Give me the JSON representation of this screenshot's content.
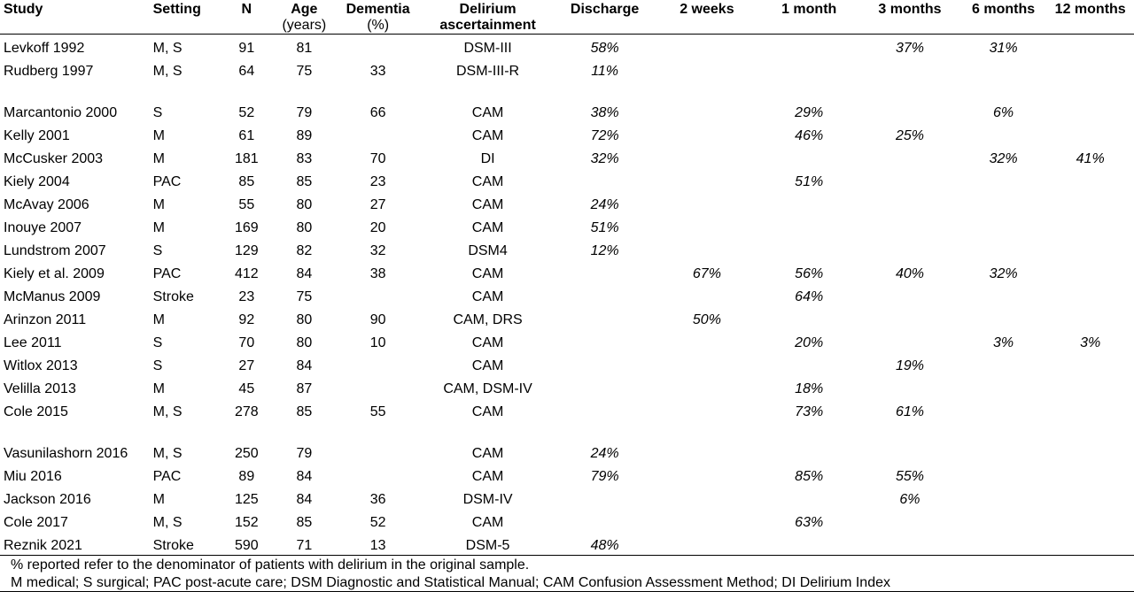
{
  "headers": {
    "study": "Study",
    "setting": "Setting",
    "n": "N",
    "age": "Age",
    "age_unit": "(years)",
    "dementia": "Dementia",
    "dementia_unit": "(%)",
    "delirium_line1": "Delirium",
    "delirium_line2": "ascertainment",
    "discharge": "Discharge",
    "w2": "2 weeks",
    "m1": "1 month",
    "m3": "3 months",
    "m6": "6 months",
    "m12": "12 months"
  },
  "rows": [
    {
      "study": "Levkoff 1992",
      "setting": "M, S",
      "n": "91",
      "age": "81",
      "dementia": "",
      "delirium": "DSM-III",
      "discharge": "58%",
      "w2": "",
      "m1": "",
      "m3": "37%",
      "m6": "31%",
      "m12": ""
    },
    {
      "study": "Rudberg 1997",
      "setting": "M, S",
      "n": "64",
      "age": "75",
      "dementia": "33",
      "delirium": "DSM-III-R",
      "discharge": "11%",
      "w2": "",
      "m1": "",
      "m3": "",
      "m6": "",
      "m12": ""
    },
    {
      "study": "Marcantonio 2000",
      "setting": "S",
      "n": "52",
      "age": "79",
      "dementia": "66",
      "delirium": "CAM",
      "discharge": "38%",
      "w2": "",
      "m1": "29%",
      "m3": "",
      "m6": "6%",
      "m12": ""
    },
    {
      "study": "Kelly 2001",
      "setting": "M",
      "n": "61",
      "age": "89",
      "dementia": "",
      "delirium": "CAM",
      "discharge": "72%",
      "w2": "",
      "m1": "46%",
      "m3": "25%",
      "m6": "",
      "m12": ""
    },
    {
      "study": "McCusker 2003",
      "setting": "M",
      "n": "181",
      "age": "83",
      "dementia": "70",
      "delirium": "DI",
      "discharge": "32%",
      "w2": "",
      "m1": "",
      "m3": "",
      "m6": "32%",
      "m12": "41%"
    },
    {
      "study": "Kiely 2004",
      "setting": "PAC",
      "n": "85",
      "age": "85",
      "dementia": "23",
      "delirium": "CAM",
      "discharge": "",
      "w2": "",
      "m1": "51%",
      "m3": "",
      "m6": "",
      "m12": ""
    },
    {
      "study": "McAvay 2006",
      "setting": "M",
      "n": "55",
      "age": "80",
      "dementia": "27",
      "delirium": "CAM",
      "discharge": "24%",
      "w2": "",
      "m1": "",
      "m3": "",
      "m6": "",
      "m12": ""
    },
    {
      "study": "Inouye 2007",
      "setting": "M",
      "n": "169",
      "age": "80",
      "dementia": "20",
      "delirium": "CAM",
      "discharge": "51%",
      "w2": "",
      "m1": "",
      "m3": "",
      "m6": "",
      "m12": ""
    },
    {
      "study": "Lundstrom 2007",
      "setting": "S",
      "n": "129",
      "age": "82",
      "dementia": "32",
      "delirium": "DSM4",
      "discharge": "12%",
      "w2": "",
      "m1": "",
      "m3": "",
      "m6": "",
      "m12": ""
    },
    {
      "study": "Kiely et al. 2009",
      "setting": "PAC",
      "n": "412",
      "age": "84",
      "dementia": "38",
      "delirium": "CAM",
      "discharge": "",
      "w2": "67%",
      "m1": "56%",
      "m3": "40%",
      "m6": "32%",
      "m12": ""
    },
    {
      "study": "McManus 2009",
      "setting": "Stroke",
      "n": "23",
      "age": "75",
      "dementia": "",
      "delirium": "CAM",
      "discharge": "",
      "w2": "",
      "m1": "64%",
      "m3": "",
      "m6": "",
      "m12": ""
    },
    {
      "study": "Arinzon 2011",
      "setting": "M",
      "n": "92",
      "age": "80",
      "dementia": "90",
      "delirium": "CAM, DRS",
      "discharge": "",
      "w2": "50%",
      "m1": "",
      "m3": "",
      "m6": "",
      "m12": ""
    },
    {
      "study": "Lee 2011",
      "setting": "S",
      "n": "70",
      "age": "80",
      "dementia": "10",
      "delirium": "CAM",
      "discharge": "",
      "w2": "",
      "m1": "20%",
      "m3": "",
      "m6": "3%",
      "m12": "3%"
    },
    {
      "study": "Witlox 2013",
      "setting": "S",
      "n": "27",
      "age": "84",
      "dementia": "",
      "delirium": "CAM",
      "discharge": "",
      "w2": "",
      "m1": "",
      "m3": "19%",
      "m6": "",
      "m12": ""
    },
    {
      "study": "Velilla 2013",
      "setting": "M",
      "n": "45",
      "age": "87",
      "dementia": "",
      "delirium": "CAM, DSM-IV",
      "discharge": "",
      "w2": "",
      "m1": "18%",
      "m3": "",
      "m6": "",
      "m12": ""
    },
    {
      "study": "Cole 2015",
      "setting": "M, S",
      "n": "278",
      "age": "85",
      "dementia": "55",
      "delirium": "CAM",
      "discharge": "",
      "w2": "",
      "m1": "73%",
      "m3": "61%",
      "m6": "",
      "m12": ""
    },
    {
      "study": "Vasunilashorn 2016",
      "setting": "M, S",
      "n": "250",
      "age": "79",
      "dementia": "",
      "delirium": "CAM",
      "discharge": "24%",
      "w2": "",
      "m1": "",
      "m3": "",
      "m6": "",
      "m12": ""
    },
    {
      "study": "Miu 2016",
      "setting": "PAC",
      "n": "89",
      "age": "84",
      "dementia": "",
      "delirium": "CAM",
      "discharge": "79%",
      "w2": "",
      "m1": "85%",
      "m3": "55%",
      "m6": "",
      "m12": ""
    },
    {
      "study": "Jackson 2016",
      "setting": "M",
      "n": "125",
      "age": "84",
      "dementia": "36",
      "delirium": "DSM-IV",
      "discharge": "",
      "w2": "",
      "m1": "",
      "m3": "6%",
      "m6": "",
      "m12": ""
    },
    {
      "study": "Cole 2017",
      "setting": "M, S",
      "n": "152",
      "age": "85",
      "dementia": "52",
      "delirium": "CAM",
      "discharge": "",
      "w2": "",
      "m1": "63%",
      "m3": "",
      "m6": "",
      "m12": ""
    },
    {
      "study": "Reznik 2021",
      "setting": "Stroke",
      "n": "590",
      "age": "71",
      "dementia": "13",
      "delirium": "DSM-5",
      "discharge": "48%",
      "w2": "",
      "m1": "",
      "m3": "",
      "m6": "",
      "m12": ""
    }
  ],
  "footnotes": [
    "% reported refer to the denominator of patients with delirium in the original sample.",
    "M medical; S surgical; PAC post-acute care; DSM Diagnostic and Statistical Manual; CAM Confusion Assessment Method; DI Delirium Index"
  ]
}
